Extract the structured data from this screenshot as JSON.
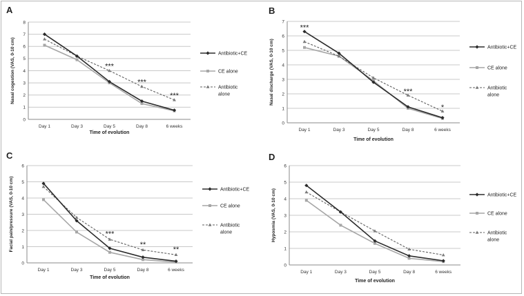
{
  "chart_data": [
    {
      "type": "line",
      "panel": "A",
      "ylabel": "Nasal cogestion (VAS, 0-10 cm)",
      "xlabel": "Time of evolution",
      "categories": [
        "Day 1",
        "Day 3",
        "Day 5",
        "Day 8",
        "6 weeks"
      ],
      "yticks": [
        "0",
        "1",
        "2",
        "3",
        "4",
        "5",
        "6",
        "7",
        "8"
      ],
      "ylim": [
        0,
        8
      ],
      "series": [
        {
          "name": "Antibiotic+CE",
          "values": [
            7.0,
            5.2,
            3.1,
            1.5,
            0.75
          ]
        },
        {
          "name": "CE alone",
          "values": [
            6.1,
            4.9,
            3.0,
            1.3,
            0.7
          ]
        },
        {
          "name": "Antibiotic alone",
          "values": [
            6.6,
            5.2,
            4.0,
            2.7,
            1.6
          ]
        }
      ],
      "annotations": [
        {
          "x": 2,
          "y": 4.4,
          "text": "***"
        },
        {
          "x": 3,
          "y": 3.1,
          "text": "***"
        },
        {
          "x": 4,
          "y": 2.0,
          "text": "***"
        }
      ],
      "grid": true,
      "legend": "right"
    },
    {
      "type": "line",
      "panel": "B",
      "ylabel": "Nasal discharge (VAS, 0-10 cm)",
      "xlabel": "Time of evolution",
      "categories": [
        "Day 1",
        "Day 3",
        "Day 5",
        "Day 8",
        "6 weeks"
      ],
      "yticks": [
        "0",
        "1",
        "2",
        "3",
        "4",
        "5",
        "6",
        "7"
      ],
      "ylim": [
        0,
        7
      ],
      "series": [
        {
          "name": "Antibiotic+CE",
          "values": [
            6.3,
            4.8,
            2.8,
            1.1,
            0.35
          ]
        },
        {
          "name": "CE alone",
          "values": [
            5.2,
            4.6,
            2.9,
            1.0,
            0.3
          ]
        },
        {
          "name": "Antibiotic alone",
          "values": [
            5.6,
            4.6,
            3.1,
            1.9,
            0.8
          ]
        }
      ],
      "annotations": [
        {
          "x": 0,
          "y": 6.6,
          "text": "***"
        },
        {
          "x": 3,
          "y": 2.2,
          "text": "***"
        },
        {
          "x": 4,
          "y": 1.1,
          "text": "*"
        }
      ],
      "grid": true,
      "legend": "right"
    },
    {
      "type": "line",
      "panel": "C",
      "ylabel": "Facial pain/pressure (VAS, 0-10 cm)",
      "xlabel": "Time of evolution",
      "categories": [
        "Day 1",
        "Day 3",
        "Day 5",
        "Day 8",
        "6 weeks"
      ],
      "yticks": [
        "0",
        "1",
        "2",
        "3",
        "4",
        "5",
        "6"
      ],
      "ylim": [
        0,
        6
      ],
      "series": [
        {
          "name": "Antibiotic+CE",
          "values": [
            4.9,
            2.6,
            0.9,
            0.35,
            0.1
          ]
        },
        {
          "name": "CE alone",
          "values": [
            3.9,
            1.9,
            0.65,
            0.2,
            0.05
          ]
        },
        {
          "name": "Antibiotic alone",
          "values": [
            4.7,
            2.8,
            1.45,
            0.8,
            0.5
          ]
        }
      ],
      "annotations": [
        {
          "x": 2,
          "y": 1.8,
          "text": "***"
        },
        {
          "x": 3,
          "y": 1.15,
          "text": "**"
        },
        {
          "x": 4,
          "y": 0.85,
          "text": "**"
        }
      ],
      "grid": true,
      "legend": "right"
    },
    {
      "type": "line",
      "panel": "D",
      "ylabel": "Hyposmia (VAS, 0-10 cm)",
      "xlabel": "Time of evolution",
      "categories": [
        "Day 1",
        "Day 3",
        "Day 5",
        "Day 8",
        "6 weeks"
      ],
      "yticks": [
        "0",
        "1",
        "2",
        "3",
        "4",
        "5",
        "6"
      ],
      "ylim": [
        0,
        6
      ],
      "series": [
        {
          "name": "Antibiotic+CE",
          "values": [
            4.8,
            3.2,
            1.45,
            0.55,
            0.25
          ]
        },
        {
          "name": "CE alone",
          "values": [
            3.9,
            2.4,
            1.3,
            0.4,
            0.2
          ]
        },
        {
          "name": "Antibiotic alone",
          "values": [
            4.4,
            3.2,
            2.05,
            0.95,
            0.6
          ]
        }
      ],
      "annotations": [],
      "grid": true,
      "legend": "right"
    }
  ],
  "legend_labels": {
    "series1": "Antibiotic+CE",
    "series2": "CE alone",
    "series3_line1": "Antibiotic",
    "series3_line2": "alone"
  },
  "colors": {
    "series1": "#2b2b2b",
    "series2": "#a6a6a6",
    "series3": "#5e5e5e",
    "grid": "#c8c8c8"
  }
}
